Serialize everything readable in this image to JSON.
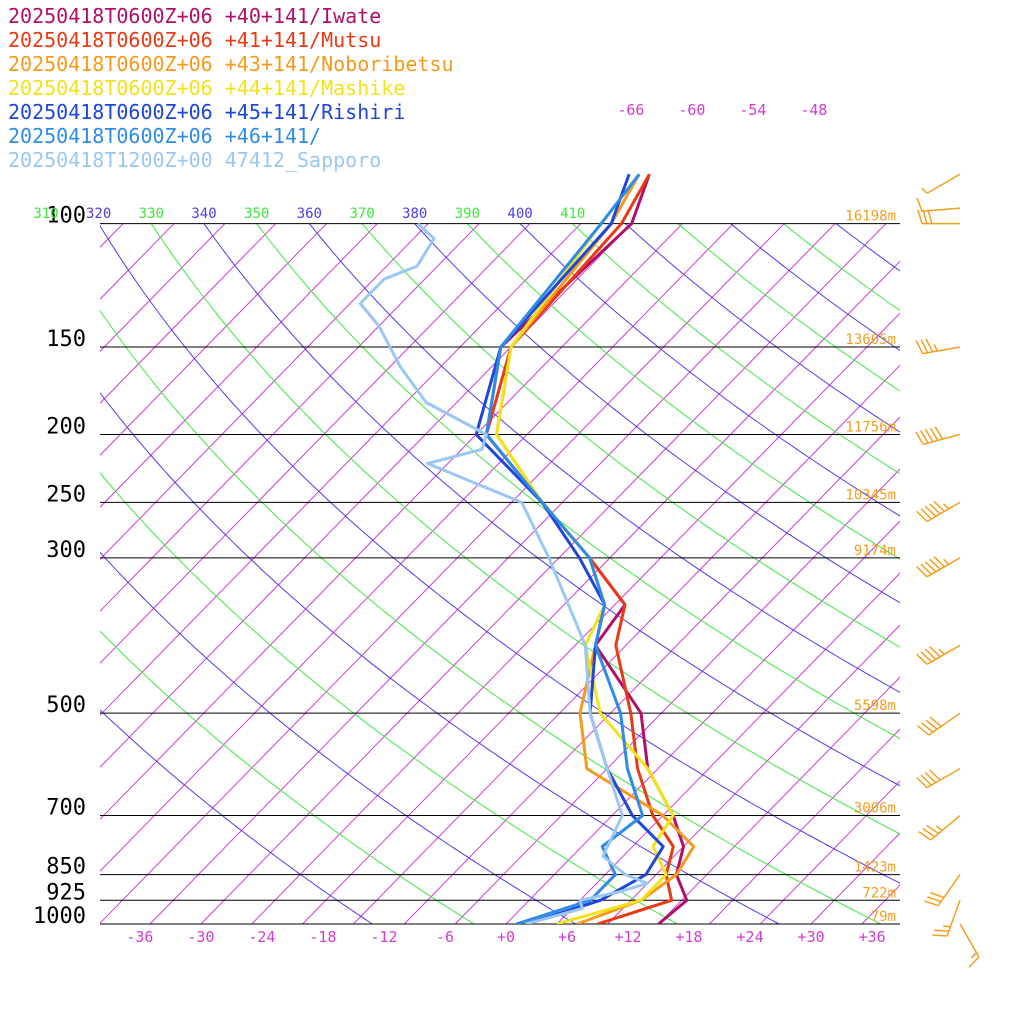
{
  "legend": [
    {
      "text": "20250418T0600Z+06 +40+141/Iwate",
      "color": "#b0106a"
    },
    {
      "text": "20250418T0600Z+06 +41+141/Mutsu",
      "color": "#e83a14"
    },
    {
      "text": "20250418T0600Z+06 +43+141/Noboribetsu",
      "color": "#f59a1a"
    },
    {
      "text": "20250418T0600Z+06 +44+141/Mashike",
      "color": "#f2e21c"
    },
    {
      "text": "20250418T0600Z+06 +45+141/Rishiri",
      "color": "#1e46d8"
    },
    {
      "text": "20250418T0600Z+06 +46+141/",
      "color": "#2f8ce6"
    },
    {
      "text": "20250418T1200Z+00 47412_Sapporo",
      "color": "#9ac8f2"
    }
  ],
  "colors": {
    "isotherm": "#d23bd2",
    "theta_blue": "#4b3ee8",
    "theta_green": "#3ee83e",
    "heights": "#f0a020",
    "barbs": "#f0a020"
  },
  "chart_data": {
    "type": "line",
    "subtype": "skew-T log-p",
    "pressure_levels": [
      100,
      150,
      200,
      250,
      300,
      500,
      700,
      850,
      925,
      1000
    ],
    "pressure_labels": [
      "100",
      "150",
      "200",
      "250",
      "300",
      "500",
      "700",
      "850",
      "925",
      "1000"
    ],
    "heights": [
      "16198m",
      "13605m",
      "11756m",
      "10345m",
      "9174m",
      "5598m",
      "3006m",
      "1423m",
      "722m",
      "79m"
    ],
    "x_ticks": [
      "-36",
      "-30",
      "-24",
      "-18",
      "-12",
      "-6",
      "+0",
      "+6",
      "+12",
      "+18",
      "+24",
      "+30",
      "+36"
    ],
    "x_tick_values": [
      -36,
      -30,
      -24,
      -18,
      -12,
      -6,
      0,
      6,
      12,
      18,
      24,
      30,
      36
    ],
    "top_isotherm_labels": [
      "-66",
      "-60",
      "-54",
      "-48"
    ],
    "top_isotherm_values": [
      -66,
      -60,
      -54,
      -48
    ],
    "theta_labels": [
      "310",
      "320",
      "330",
      "340",
      "350",
      "360",
      "370",
      "380",
      "390",
      "400",
      "410"
    ],
    "theta_values": [
      310,
      320,
      330,
      340,
      350,
      360,
      370,
      380,
      390,
      400,
      410
    ],
    "xlim": [
      -40,
      40
    ],
    "plim": [
      1000,
      100
    ],
    "series": [
      {
        "name": "20250418T0600Z+06 +40+141/Iwate",
        "color": "#b0106a",
        "points": [
          [
            1000,
            15
          ],
          [
            925,
            15.5
          ],
          [
            850,
            12
          ],
          [
            775,
            10
          ],
          [
            700,
            6
          ],
          [
            600,
            -1
          ],
          [
            500,
            -7
          ],
          [
            400,
            -18
          ],
          [
            350,
            -19
          ],
          [
            300,
            -27
          ],
          [
            250,
            -37
          ],
          [
            200,
            -49
          ],
          [
            150,
            -56
          ],
          [
            100,
            -55
          ],
          [
            85,
            -58
          ]
        ]
      },
      {
        "name": "20250418T0600Z+06 +41+141/Mutsu",
        "color": "#e83a14",
        "points": [
          [
            1000,
            9
          ],
          [
            925,
            14
          ],
          [
            850,
            11
          ],
          [
            775,
            9
          ],
          [
            700,
            4
          ],
          [
            600,
            -2
          ],
          [
            500,
            -8
          ],
          [
            400,
            -16
          ],
          [
            350,
            -19
          ],
          [
            300,
            -27
          ],
          [
            250,
            -37
          ],
          [
            200,
            -49
          ],
          [
            150,
            -55
          ],
          [
            100,
            -56
          ],
          [
            85,
            -58
          ]
        ]
      },
      {
        "name": "20250418T0600Z+06 +43+141/Noboribetsu",
        "color": "#f59a1a",
        "points": [
          [
            1000,
            7
          ],
          [
            925,
            11
          ],
          [
            850,
            12
          ],
          [
            775,
            11
          ],
          [
            700,
            5
          ],
          [
            600,
            -7
          ],
          [
            500,
            -13
          ],
          [
            400,
            -18
          ],
          [
            350,
            -21
          ],
          [
            300,
            -27
          ],
          [
            250,
            -37
          ],
          [
            200,
            -48
          ],
          [
            150,
            -55
          ],
          [
            100,
            -57
          ],
          [
            85,
            -59
          ]
        ]
      },
      {
        "name": "20250418T0600Z+06 +44+141/Mashike",
        "color": "#f2e21c",
        "points": [
          [
            1000,
            5
          ],
          [
            925,
            11
          ],
          [
            850,
            11
          ],
          [
            775,
            7
          ],
          [
            700,
            6
          ],
          [
            600,
            -1
          ],
          [
            500,
            -11
          ],
          [
            400,
            -19
          ],
          [
            350,
            -21
          ],
          [
            300,
            -27
          ],
          [
            250,
            -37
          ],
          [
            200,
            -48
          ],
          [
            150,
            -55
          ],
          [
            100,
            -58
          ],
          [
            85,
            -59
          ]
        ]
      },
      {
        "name": "20250418T0600Z+06 +45+141/Rishiri",
        "color": "#1e46d8",
        "points": [
          [
            1000,
            2
          ],
          [
            925,
            7
          ],
          [
            850,
            9
          ],
          [
            775,
            8
          ],
          [
            700,
            2
          ],
          [
            600,
            -5
          ],
          [
            500,
            -12
          ],
          [
            400,
            -18
          ],
          [
            350,
            -21
          ],
          [
            300,
            -28
          ],
          [
            250,
            -37
          ],
          [
            200,
            -50
          ],
          [
            150,
            -56
          ],
          [
            100,
            -57
          ],
          [
            85,
            -60
          ]
        ]
      },
      {
        "name": "20250418T0600Z+06 +46+141/",
        "color": "#2f8ce6",
        "points": [
          [
            1000,
            1
          ],
          [
            925,
            6
          ],
          [
            850,
            6
          ],
          [
            775,
            2
          ],
          [
            700,
            3
          ],
          [
            600,
            -3
          ],
          [
            500,
            -9
          ],
          [
            400,
            -18
          ],
          [
            350,
            -21
          ],
          [
            300,
            -27
          ],
          [
            250,
            -37
          ],
          [
            200,
            -49
          ],
          [
            150,
            -56
          ],
          [
            100,
            -58
          ],
          [
            85,
            -59
          ]
        ]
      },
      {
        "name": "20250418T1200Z+00 47412_Sapporo",
        "color": "#9ac8f2",
        "points": [
          [
            1000,
            2
          ],
          [
            950,
            6
          ],
          [
            925,
            5
          ],
          [
            900,
            8
          ],
          [
            875,
            10
          ],
          [
            850,
            7
          ],
          [
            800,
            3
          ],
          [
            700,
            1
          ],
          [
            600,
            -5
          ],
          [
            500,
            -12
          ],
          [
            400,
            -19
          ],
          [
            300,
            -31
          ],
          [
            250,
            -39
          ],
          [
            220,
            -52
          ],
          [
            210,
            -48
          ],
          [
            200,
            -49
          ],
          [
            180,
            -58
          ],
          [
            160,
            -64
          ],
          [
            140,
            -70
          ],
          [
            130,
            -74
          ],
          [
            120,
            -74
          ],
          [
            115,
            -72
          ],
          [
            105,
            -73
          ],
          [
            100,
            -76
          ]
        ]
      }
    ],
    "wind_barbs": [
      {
        "p": 85,
        "dir": 240,
        "speed": 5
      },
      {
        "p": 95,
        "dir": 265,
        "speed": 10
      },
      {
        "p": 100,
        "dir": 270,
        "speed": 30
      },
      {
        "p": 150,
        "dir": 260,
        "speed": 35
      },
      {
        "p": 200,
        "dir": 255,
        "speed": 50
      },
      {
        "p": 250,
        "dir": 240,
        "speed": 55
      },
      {
        "p": 300,
        "dir": 240,
        "speed": 55
      },
      {
        "p": 400,
        "dir": 240,
        "speed": 45
      },
      {
        "p": 500,
        "dir": 235,
        "speed": 40
      },
      {
        "p": 600,
        "dir": 240,
        "speed": 40
      },
      {
        "p": 700,
        "dir": 230,
        "speed": 35
      },
      {
        "p": 850,
        "dir": 215,
        "speed": 30
      },
      {
        "p": 925,
        "dir": 200,
        "speed": 25
      },
      {
        "p": 1000,
        "dir": 150,
        "speed": 15
      }
    ]
  }
}
